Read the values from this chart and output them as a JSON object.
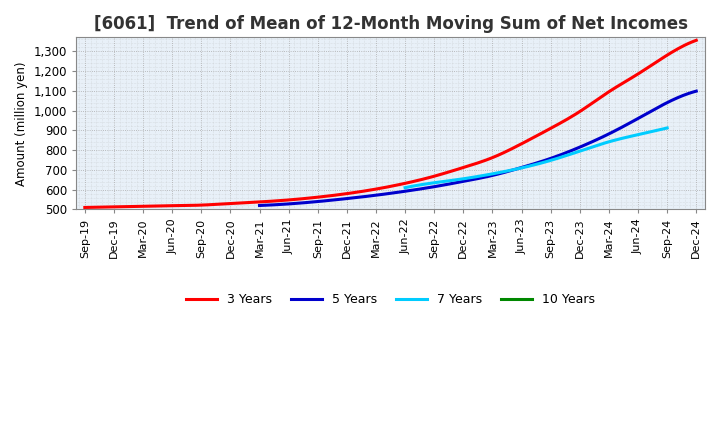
{
  "title": "[6061]  Trend of Mean of 12-Month Moving Sum of Net Incomes",
  "ylabel": "Amount (million yen)",
  "ylim": [
    500,
    1370
  ],
  "yticks": [
    500,
    600,
    700,
    800,
    900,
    1000,
    1100,
    1200,
    1300
  ],
  "ytick_labels": [
    "500",
    "600",
    "700",
    "800",
    "900",
    "1,000",
    "1,100",
    "1,200",
    "1,300"
  ],
  "x_labels": [
    "Sep-19",
    "Dec-19",
    "Mar-20",
    "Jun-20",
    "Sep-20",
    "Dec-20",
    "Mar-21",
    "Jun-21",
    "Sep-21",
    "Dec-21",
    "Mar-22",
    "Jun-22",
    "Sep-22",
    "Dec-22",
    "Mar-23",
    "Jun-23",
    "Sep-23",
    "Dec-23",
    "Mar-24",
    "Jun-24",
    "Sep-24",
    "Dec-24"
  ],
  "background_color": "#ffffff",
  "plot_background": "#e8f0f8",
  "grid_color": "#aaaaaa",
  "line_colors": [
    "#ff0000",
    "#0000cc",
    "#00ccff",
    "#008800"
  ],
  "line_labels": [
    "3 Years",
    "5 Years",
    "7 Years",
    "10 Years"
  ],
  "series_3yr": [
    510,
    513,
    516,
    519,
    522,
    530,
    538,
    548,
    562,
    580,
    603,
    632,
    668,
    712,
    762,
    832,
    910,
    995,
    1095,
    1185,
    1280,
    1355
  ],
  "series_5yr": [
    null,
    null,
    null,
    null,
    null,
    null,
    520,
    528,
    540,
    555,
    572,
    592,
    615,
    642,
    672,
    712,
    758,
    815,
    882,
    960,
    1040,
    1098
  ],
  "series_7yr": [
    null,
    null,
    null,
    null,
    null,
    null,
    null,
    null,
    null,
    null,
    null,
    610,
    635,
    655,
    680,
    710,
    748,
    795,
    842,
    878,
    912,
    null
  ],
  "series_10yr": [
    null,
    null,
    null,
    null,
    null,
    null,
    null,
    null,
    null,
    null,
    null,
    null,
    null,
    null,
    null,
    null,
    null,
    null,
    null,
    null,
    null,
    null
  ],
  "title_fontsize": 12,
  "axis_fontsize": 8.5,
  "legend_fontsize": 9
}
